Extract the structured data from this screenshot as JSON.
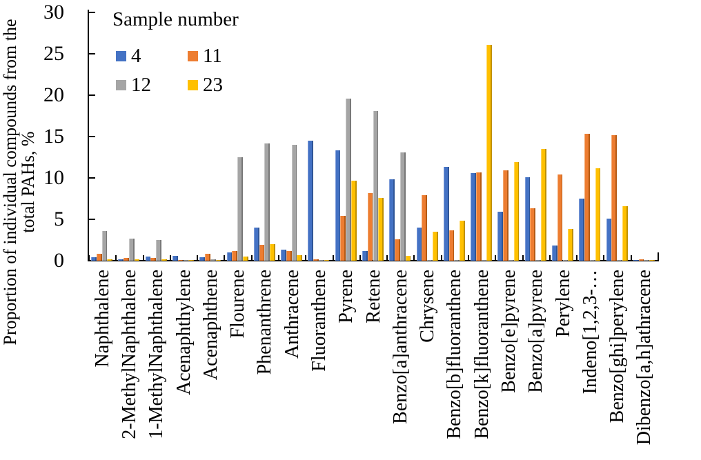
{
  "page": {
    "background": "#ffffff"
  },
  "y_axis": {
    "label_line1": "Proportion of individual compounds from the",
    "label_line2": "total PAHs, %",
    "tick_labels": [
      "0",
      "5",
      "10",
      "15",
      "20",
      "25",
      "30"
    ]
  },
  "legend": {
    "title": "Sample number",
    "items": [
      {
        "label": "4",
        "color": "#4472C4"
      },
      {
        "label": "11",
        "color": "#ED7D31"
      },
      {
        "label": "12",
        "color": "#A5A5A5"
      },
      {
        "label": "23",
        "color": "#FFC000"
      }
    ]
  },
  "chart_data": {
    "type": "bar",
    "title": "",
    "ylabel": "Proportion of individual compounds from the total PAHs, %",
    "xlabel": "",
    "ylim": [
      0,
      30
    ],
    "ytick_interval": 5,
    "grid": false,
    "legend_title": "Sample number",
    "legend_position": "top-left-inside",
    "categories": [
      "Naphthalene",
      "2-MethylNaphthalene",
      "1-MethylNaphthalene",
      "Acenaphthylene",
      "Acenaphthene",
      "Flourene",
      "Phenanthrene",
      "Anthracene",
      "Fluoranthene",
      "Pyrene",
      "Retene",
      "Benzo[a]anthracene",
      "Chrysene",
      "Benzo[b]fluoranthene",
      "Benzo[k]fluoranthene",
      "Benzo[e]pyrene",
      "Benzo[a]pyrene",
      "Perylene",
      "Indeno[1,2,3-…",
      "Benzo[ghi]perylene",
      "Dibenzo[a,h]athracene"
    ],
    "series": [
      {
        "name": "4",
        "color": "#4472C4",
        "edge_light": "#7C9BD9",
        "edge_dark": "#2F5597",
        "values": [
          0.4,
          0.2,
          0.5,
          0.6,
          0.4,
          1.0,
          4.0,
          1.3,
          14.5,
          13.3,
          1.2,
          9.8,
          4.0,
          11.3,
          10.6,
          5.9,
          10.1,
          1.8,
          7.5,
          5.1,
          0.1
        ]
      },
      {
        "name": "11",
        "color": "#ED7D31",
        "edge_light": "#F2A76F",
        "edge_dark": "#B55A14",
        "values": [
          0.8,
          0.3,
          0.3,
          0.1,
          0.8,
          1.2,
          1.9,
          1.2,
          0.2,
          5.4,
          8.2,
          2.6,
          7.9,
          3.7,
          10.7,
          10.9,
          6.3,
          10.4,
          15.3,
          15.2,
          0.2
        ]
      },
      {
        "name": "12",
        "color": "#A5A5A5",
        "edge_light": "#C6C6C6",
        "edge_dark": "#787878",
        "values": [
          3.6,
          2.7,
          2.5,
          0.1,
          0.2,
          12.5,
          14.2,
          14.0,
          0.1,
          19.6,
          18.1,
          13.1,
          0.1,
          0.1,
          0.1,
          0.1,
          0.1,
          0.1,
          0.1,
          0.1,
          0.1
        ]
      },
      {
        "name": "23",
        "color": "#FFC000",
        "edge_light": "#FFD75E",
        "edge_dark": "#BF9000",
        "values": [
          0.2,
          0.2,
          0.2,
          0.1,
          0.1,
          0.5,
          2.0,
          0.7,
          0.1,
          9.7,
          7.6,
          0.6,
          3.5,
          4.8,
          26.1,
          11.9,
          13.5,
          3.8,
          11.2,
          6.6,
          0.1
        ]
      }
    ]
  }
}
